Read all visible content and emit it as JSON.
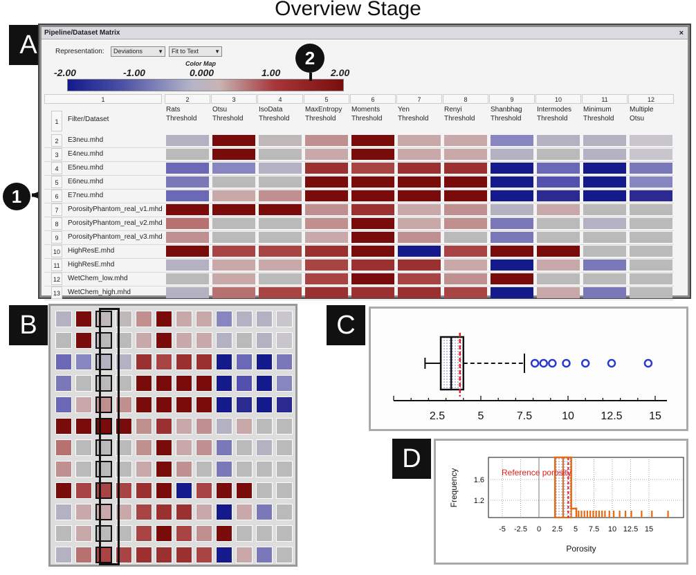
{
  "title": "Overview Stage",
  "panels": {
    "a": "A",
    "b": "B",
    "c": "C",
    "d": "D"
  },
  "callouts": {
    "one": "1",
    "two": "2"
  },
  "window": {
    "title": "Pipeline/Dataset Matrix",
    "close_icon": "close-icon",
    "representation_label": "Representation:",
    "representation_value": "Deviations",
    "fit_value": "Fit to Text",
    "colormap_title": "Color Map",
    "colormap_ticks": [
      "-2.00",
      "-1.00",
      "0.000",
      "1.00",
      "2.00"
    ],
    "header_row_num": "1",
    "header_first_col": "Filter/Dataset",
    "columns": [
      {
        "num": "1",
        "l1": "",
        "l2": ""
      },
      {
        "num": "2",
        "l1": "Rats",
        "l2": "Threshold"
      },
      {
        "num": "3",
        "l1": "Otsu",
        "l2": "Threshold"
      },
      {
        "num": "4",
        "l1": "IsoData",
        "l2": "Threshold"
      },
      {
        "num": "5",
        "l1": "MaxEntropy",
        "l2": "Threshold"
      },
      {
        "num": "6",
        "l1": "Moments",
        "l2": "Threshold"
      },
      {
        "num": "7",
        "l1": "Yen",
        "l2": "Threshold"
      },
      {
        "num": "8",
        "l1": "Renyi",
        "l2": "Threshold"
      },
      {
        "num": "9",
        "l1": "Shanbhag",
        "l2": "Threshold"
      },
      {
        "num": "10",
        "l1": "Intermodes",
        "l2": "Threshold"
      },
      {
        "num": "11",
        "l1": "Minimum",
        "l2": "Threshold"
      },
      {
        "num": "12",
        "l1": "Multiple",
        "l2": "Otsu"
      }
    ],
    "rows": [
      {
        "num": "2",
        "name": "E3neu.mhd"
      },
      {
        "num": "3",
        "name": "E4neu.mhd"
      },
      {
        "num": "4",
        "name": "E5neu.mhd"
      },
      {
        "num": "5",
        "name": "E6neu.mhd"
      },
      {
        "num": "6",
        "name": "E7neu.mhd"
      },
      {
        "num": "7",
        "name": "PorosityPhantom_real_v1.mhd"
      },
      {
        "num": "8",
        "name": "PorosityPhantom_real_v2.mhd"
      },
      {
        "num": "9",
        "name": "PorosityPhantom_real_v3.mhd"
      },
      {
        "num": "10",
        "name": "HighResE.mhd"
      },
      {
        "num": "11",
        "name": "HighResE.mhd"
      },
      {
        "num": "12",
        "name": "WetChem_low.mhd"
      },
      {
        "num": "13",
        "name": "WetChem_high.mhd"
      }
    ],
    "colors": {
      "a": "#b4b2c2",
      "b": "#a59fc4",
      "c": "#c0b8b8",
      "d": "#c8c6cc",
      "e": "#6b68b8",
      "f": "#8886c0",
      "g": "#c8a8a8",
      "h": "#b08080",
      "i": "#9a3030",
      "j": "#7a0b0b",
      "k": "#141a8c",
      "l": "#2a2a90",
      "m": "#a84444",
      "n": "#c09090",
      "o": "#7a78b8",
      "p": "#bababa",
      "q": "#b87070",
      "r": "#5450b0"
    },
    "matrix": [
      [
        "a",
        "j",
        "c",
        "n",
        "j",
        "g",
        "g",
        "f",
        "a",
        "a",
        "d"
      ],
      [
        "p",
        "j",
        "p",
        "g",
        "j",
        "g",
        "g",
        "a",
        "p",
        "a",
        "d"
      ],
      [
        "e",
        "f",
        "a",
        "i",
        "m",
        "i",
        "i",
        "k",
        "e",
        "k",
        "o"
      ],
      [
        "o",
        "p",
        "p",
        "j",
        "j",
        "j",
        "j",
        "k",
        "r",
        "k",
        "f"
      ],
      [
        "e",
        "g",
        "n",
        "j",
        "j",
        "j",
        "j",
        "k",
        "l",
        "k",
        "l"
      ],
      [
        "j",
        "j",
        "j",
        "n",
        "i",
        "g",
        "n",
        "a",
        "g",
        "p",
        "p"
      ],
      [
        "q",
        "p",
        "p",
        "n",
        "j",
        "g",
        "n",
        "o",
        "p",
        "a",
        "p"
      ],
      [
        "n",
        "p",
        "p",
        "g",
        "j",
        "n",
        "p",
        "o",
        "p",
        "p",
        "p"
      ],
      [
        "j",
        "m",
        "m",
        "i",
        "j",
        "k",
        "m",
        "j",
        "j",
        "p",
        "p"
      ],
      [
        "a",
        "g",
        "g",
        "m",
        "i",
        "i",
        "g",
        "k",
        "g",
        "o",
        "p"
      ],
      [
        "p",
        "g",
        "p",
        "m",
        "j",
        "m",
        "n",
        "j",
        "p",
        "p",
        "p"
      ],
      [
        "a",
        "q",
        "m",
        "i",
        "i",
        "i",
        "m",
        "k",
        "g",
        "o",
        "p"
      ]
    ]
  },
  "boxplot": {
    "axis_ticks": [
      "2.5",
      "5",
      "7.5",
      "10",
      "12.5",
      "15"
    ],
    "whisker_low": 1.8,
    "q1": 2.7,
    "median": 3.3,
    "q3": 4.0,
    "reference": 3.8,
    "whisker_high": 7.5,
    "outliers": [
      8.1,
      8.6,
      9.1,
      9.9,
      11.0,
      12.5,
      14.6
    ]
  },
  "histogram": {
    "ylabel": "Frequency",
    "xlabel": "Porosity",
    "reference_label": "Reference porosity",
    "yticks": [
      "1.6",
      "1.2"
    ],
    "xticks": [
      "-5",
      "-2.5",
      "0",
      "2.5",
      "5",
      "7.5",
      "10",
      "12.5",
      "15"
    ]
  }
}
